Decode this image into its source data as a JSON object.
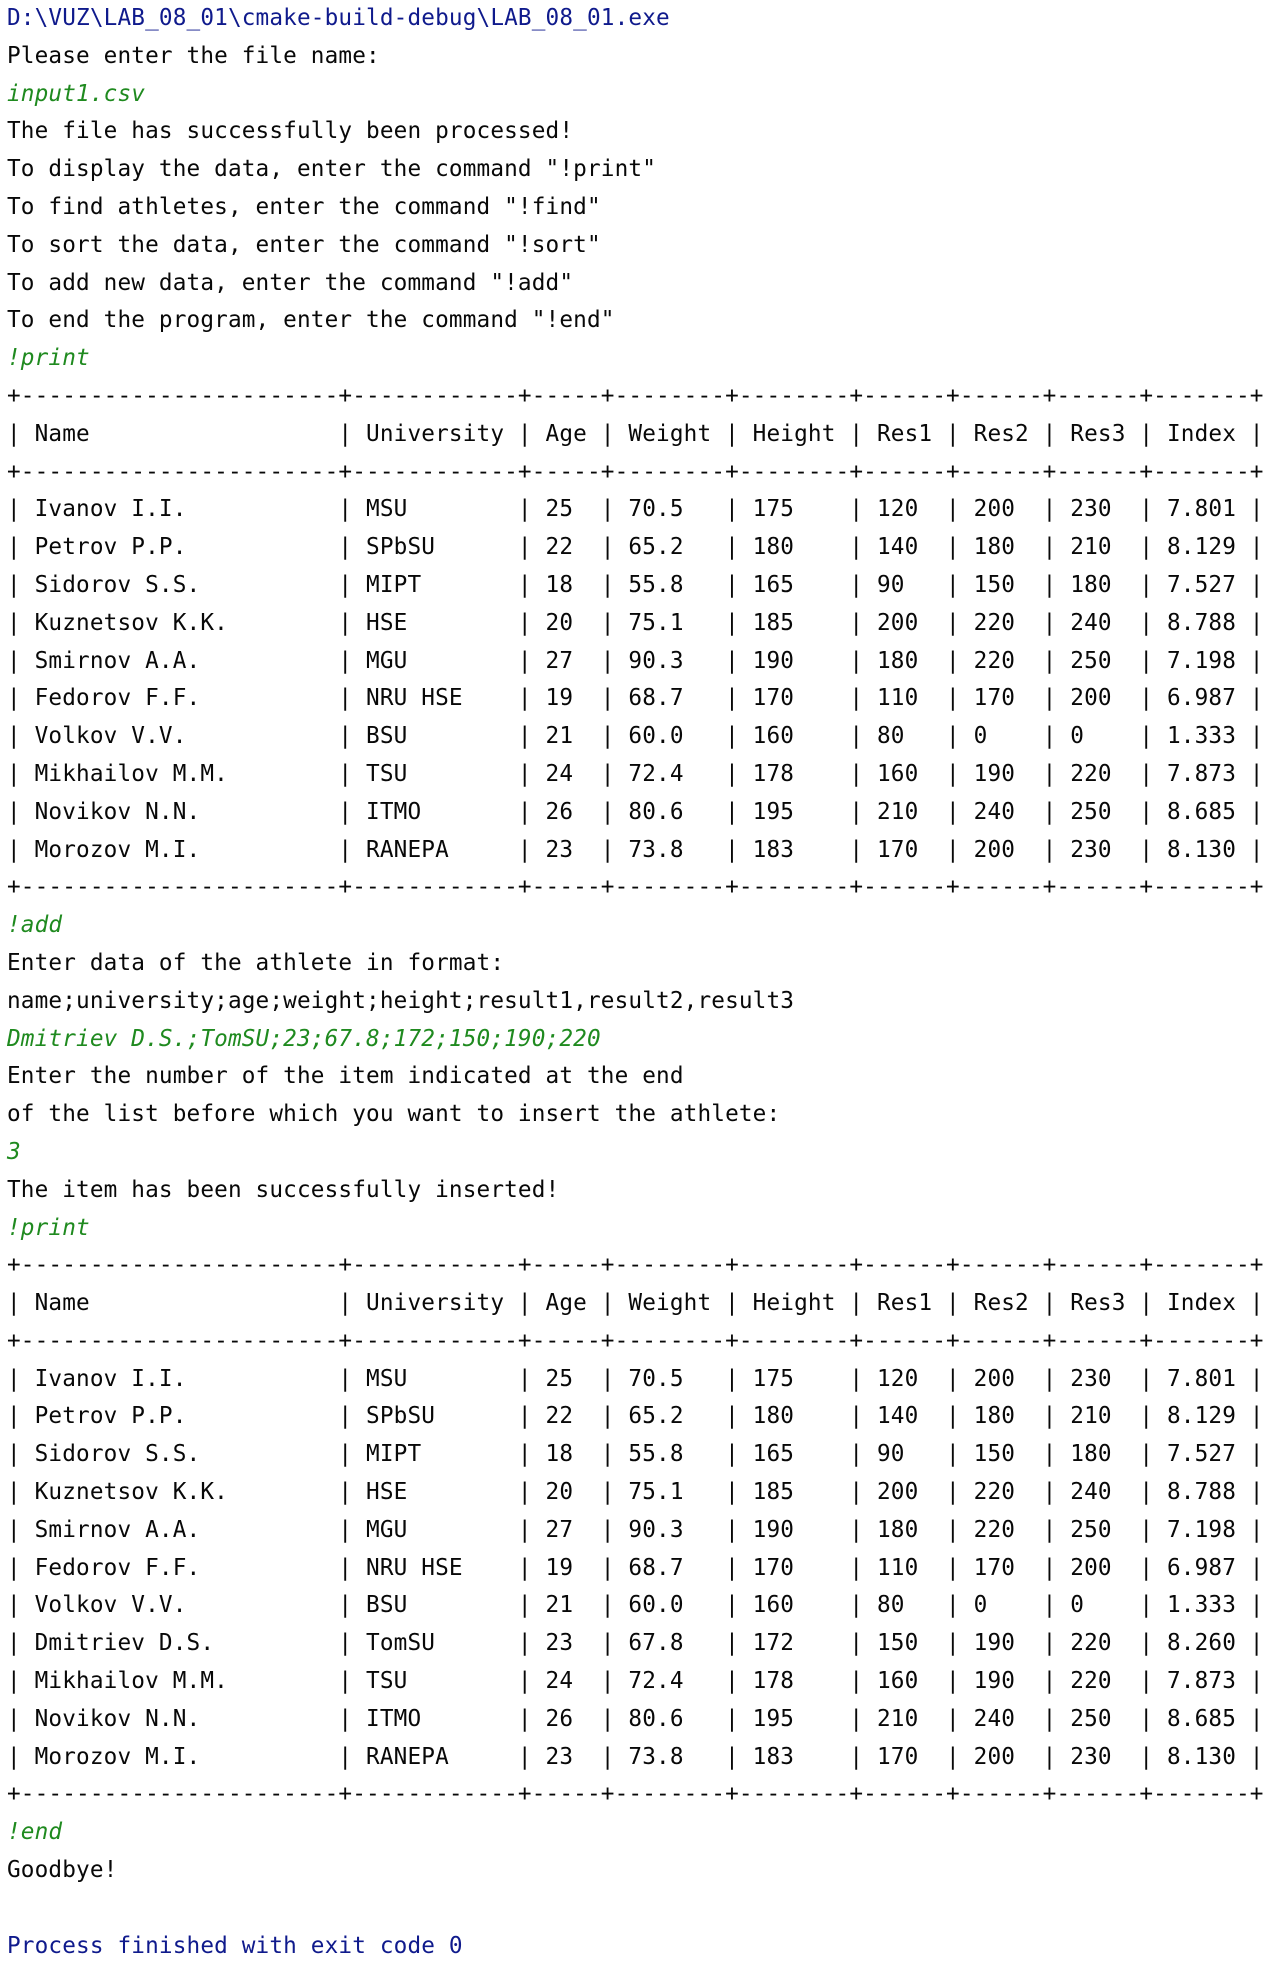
{
  "colors": {
    "system_text": "#0f1a8c",
    "output_text": "#080808",
    "user_input_text": "#1f8a1f",
    "background": "#ffffff"
  },
  "console_lines": [
    {
      "kind": "sys",
      "text": "D:\\VUZ\\LAB_08_01\\cmake-build-debug\\LAB_08_01.exe"
    },
    {
      "kind": "out",
      "text": "Please enter the file name:"
    },
    {
      "kind": "in",
      "text": "input1.csv"
    },
    {
      "kind": "out",
      "text": "The file has successfully been processed!"
    },
    {
      "kind": "out",
      "text": "To display the data, enter the command \"!print\""
    },
    {
      "kind": "out",
      "text": "To find athletes, enter the command \"!find\""
    },
    {
      "kind": "out",
      "text": "To sort the data, enter the command \"!sort\""
    },
    {
      "kind": "out",
      "text": "To add new data, enter the command \"!add\""
    },
    {
      "kind": "out",
      "text": "To end the program, enter the command \"!end\""
    },
    {
      "kind": "in",
      "text": "!print"
    },
    {
      "kind": "out",
      "text": "+-----------------------+------------+-----+--------+--------+------+------+------+-------+"
    },
    {
      "kind": "out",
      "text": "| Name                  | University | Age | Weight | Height | Res1 | Res2 | Res3 | Index |"
    },
    {
      "kind": "out",
      "text": "+-----------------------+------------+-----+--------+--------+------+------+------+-------+"
    },
    {
      "kind": "out",
      "text": "| Ivanov I.I.           | MSU        | 25  | 70.5   | 175    | 120  | 200  | 230  | 7.801 |"
    },
    {
      "kind": "out",
      "text": "| Petrov P.P.           | SPbSU      | 22  | 65.2   | 180    | 140  | 180  | 210  | 8.129 |"
    },
    {
      "kind": "out",
      "text": "| Sidorov S.S.          | MIPT       | 18  | 55.8   | 165    | 90   | 150  | 180  | 7.527 |"
    },
    {
      "kind": "out",
      "text": "| Kuznetsov K.K.        | HSE        | 20  | 75.1   | 185    | 200  | 220  | 240  | 8.788 |"
    },
    {
      "kind": "out",
      "text": "| Smirnov A.A.          | MGU        | 27  | 90.3   | 190    | 180  | 220  | 250  | 7.198 |"
    },
    {
      "kind": "out",
      "text": "| Fedorov F.F.          | NRU HSE    | 19  | 68.7   | 170    | 110  | 170  | 200  | 6.987 |"
    },
    {
      "kind": "out",
      "text": "| Volkov V.V.           | BSU        | 21  | 60.0   | 160    | 80   | 0    | 0    | 1.333 |"
    },
    {
      "kind": "out",
      "text": "| Mikhailov M.M.        | TSU        | 24  | 72.4   | 178    | 160  | 190  | 220  | 7.873 |"
    },
    {
      "kind": "out",
      "text": "| Novikov N.N.          | ITMO       | 26  | 80.6   | 195    | 210  | 240  | 250  | 8.685 |"
    },
    {
      "kind": "out",
      "text": "| Morozov M.I.          | RANEPA     | 23  | 73.8   | 183    | 170  | 200  | 230  | 8.130 |"
    },
    {
      "kind": "out",
      "text": "+-----------------------+------------+-----+--------+--------+------+------+------+-------+"
    },
    {
      "kind": "in",
      "text": "!add"
    },
    {
      "kind": "out",
      "text": "Enter data of the athlete in format:"
    },
    {
      "kind": "out",
      "text": "name;university;age;weight;height;result1,result2,result3"
    },
    {
      "kind": "in",
      "text": "Dmitriev D.S.;TomSU;23;67.8;172;150;190;220"
    },
    {
      "kind": "out",
      "text": "Enter the number of the item indicated at the end"
    },
    {
      "kind": "out",
      "text": "of the list before which you want to insert the athlete:"
    },
    {
      "kind": "in",
      "text": "3"
    },
    {
      "kind": "out",
      "text": "The item has been successfully inserted!"
    },
    {
      "kind": "in",
      "text": "!print"
    },
    {
      "kind": "out",
      "text": "+-----------------------+------------+-----+--------+--------+------+------+------+-------+"
    },
    {
      "kind": "out",
      "text": "| Name                  | University | Age | Weight | Height | Res1 | Res2 | Res3 | Index |"
    },
    {
      "kind": "out",
      "text": "+-----------------------+------------+-----+--------+--------+------+------+------+-------+"
    },
    {
      "kind": "out",
      "text": "| Ivanov I.I.           | MSU        | 25  | 70.5   | 175    | 120  | 200  | 230  | 7.801 |"
    },
    {
      "kind": "out",
      "text": "| Petrov P.P.           | SPbSU      | 22  | 65.2   | 180    | 140  | 180  | 210  | 8.129 |"
    },
    {
      "kind": "out",
      "text": "| Sidorov S.S.          | MIPT       | 18  | 55.8   | 165    | 90   | 150  | 180  | 7.527 |"
    },
    {
      "kind": "out",
      "text": "| Kuznetsov K.K.        | HSE        | 20  | 75.1   | 185    | 200  | 220  | 240  | 8.788 |"
    },
    {
      "kind": "out",
      "text": "| Smirnov A.A.          | MGU        | 27  | 90.3   | 190    | 180  | 220  | 250  | 7.198 |"
    },
    {
      "kind": "out",
      "text": "| Fedorov F.F.          | NRU HSE    | 19  | 68.7   | 170    | 110  | 170  | 200  | 6.987 |"
    },
    {
      "kind": "out",
      "text": "| Volkov V.V.           | BSU        | 21  | 60.0   | 160    | 80   | 0    | 0    | 1.333 |"
    },
    {
      "kind": "out",
      "text": "| Dmitriev D.S.         | TomSU      | 23  | 67.8   | 172    | 150  | 190  | 220  | 8.260 |"
    },
    {
      "kind": "out",
      "text": "| Mikhailov M.M.        | TSU        | 24  | 72.4   | 178    | 160  | 190  | 220  | 7.873 |"
    },
    {
      "kind": "out",
      "text": "| Novikov N.N.          | ITMO       | 26  | 80.6   | 195    | 210  | 240  | 250  | 8.685 |"
    },
    {
      "kind": "out",
      "text": "| Morozov M.I.          | RANEPA     | 23  | 73.8   | 183    | 170  | 200  | 230  | 8.130 |"
    },
    {
      "kind": "out",
      "text": "+-----------------------+------------+-----+--------+--------+------+------+------+-------+"
    },
    {
      "kind": "in",
      "text": "!end"
    },
    {
      "kind": "out",
      "text": "Goodbye!"
    },
    {
      "kind": "blank",
      "text": ""
    },
    {
      "kind": "sys",
      "text": "Process finished with exit code 0"
    }
  ]
}
